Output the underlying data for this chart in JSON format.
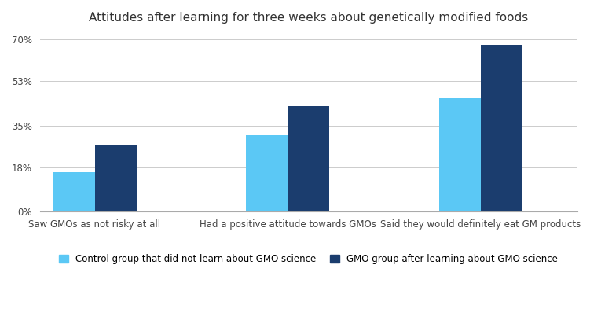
{
  "title": "Attitudes after learning for three weeks about genetically modified foods",
  "categories": [
    "Saw GMOs as not risky at all",
    "Had a positive attitude towards GMOs",
    "Said they would definitely eat GM products"
  ],
  "control_values": [
    16,
    31,
    46
  ],
  "gmo_values": [
    27,
    43,
    68
  ],
  "control_color": "#5BC8F5",
  "gmo_color": "#1B3D6E",
  "yticks": [
    0,
    18,
    35,
    53,
    70
  ],
  "ytick_labels": [
    "0%",
    "18%",
    "35%",
    "53%",
    "70%"
  ],
  "ylim": [
    0,
    73
  ],
  "legend_control": "Control group that did not learn about GMO science",
  "legend_gmo": "GMO group after learning about GMO science",
  "bar_width": 0.38,
  "background_color": "#ffffff",
  "title_fontsize": 11,
  "tick_fontsize": 8.5,
  "legend_fontsize": 8.5
}
